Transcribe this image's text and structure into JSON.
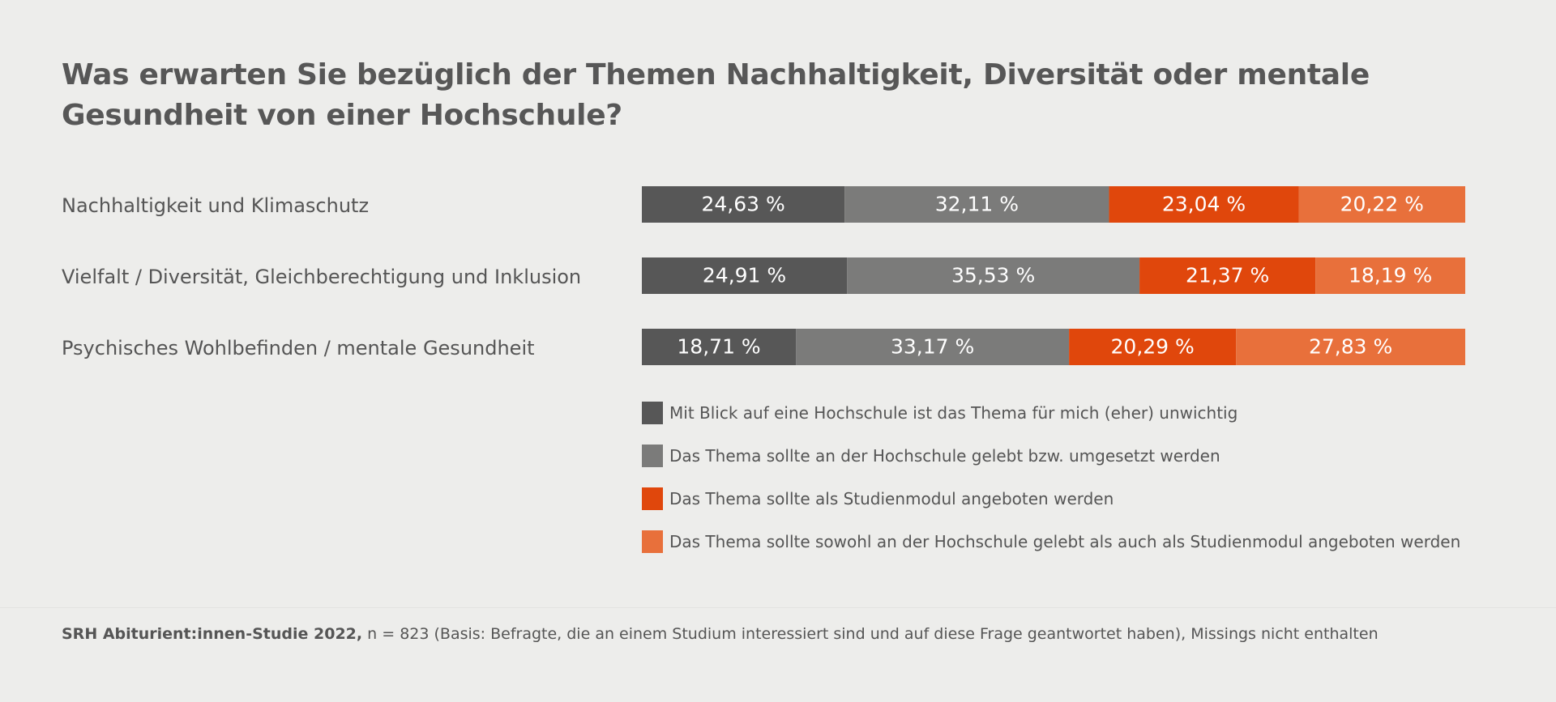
{
  "chart_data": {
    "type": "bar",
    "orientation": "horizontal",
    "stacked": true,
    "title": "Was erwarten Sie bezüglich der Themen Nachhaltigkeit, Diversität oder mentale Gesundheit von einer Hochschule?",
    "categories": [
      "Nachhaltigkeit und Klimaschutz",
      "Vielfalt / Diversität, Gleichberechtigung und Inklusion",
      "Psychisches Wohlbefinden / mentale Gesundheit"
    ],
    "unit": "%",
    "series": [
      {
        "name": "Mit Blick auf eine Hochschule ist das Thema für mich (eher) unwichtig",
        "color": "#575757",
        "values": [
          24.63,
          24.91,
          18.71
        ],
        "labels": [
          "24,63 %",
          "24,91 %",
          "18,71 %"
        ]
      },
      {
        "name": "Das Thema sollte an der Hochschule gelebt bzw. umgesetzt werden",
        "color": "#7b7b7a",
        "values": [
          32.11,
          35.53,
          33.17
        ],
        "labels": [
          "32,11 %",
          "35,53 %",
          "33,17 %"
        ]
      },
      {
        "name": "Das Thema sollte als Studienmodul angeboten werden",
        "color": "#e0470c",
        "values": [
          23.04,
          21.37,
          20.29
        ],
        "labels": [
          "23,04 %",
          "21,37 %",
          "20,29 %"
        ]
      },
      {
        "name": "Das Thema sollte sowohl an der Hochschule gelebt als auch als Studienmodul angeboten werden",
        "color": "#e8703b",
        "values": [
          20.22,
          18.19,
          27.83
        ],
        "labels": [
          "20,22 %",
          "18,19 %",
          "27,83 %"
        ]
      }
    ],
    "xlim": [
      0,
      100
    ],
    "grid": false,
    "legend_position": "bottom"
  },
  "footer": {
    "source": "SRH Abiturient:innen-Studie 2022,",
    "note": " n = 823 (Basis: Befragte, die an einem Studium interessiert sind und auf diese Frage geantwortet haben), Missings nicht enthalten"
  }
}
